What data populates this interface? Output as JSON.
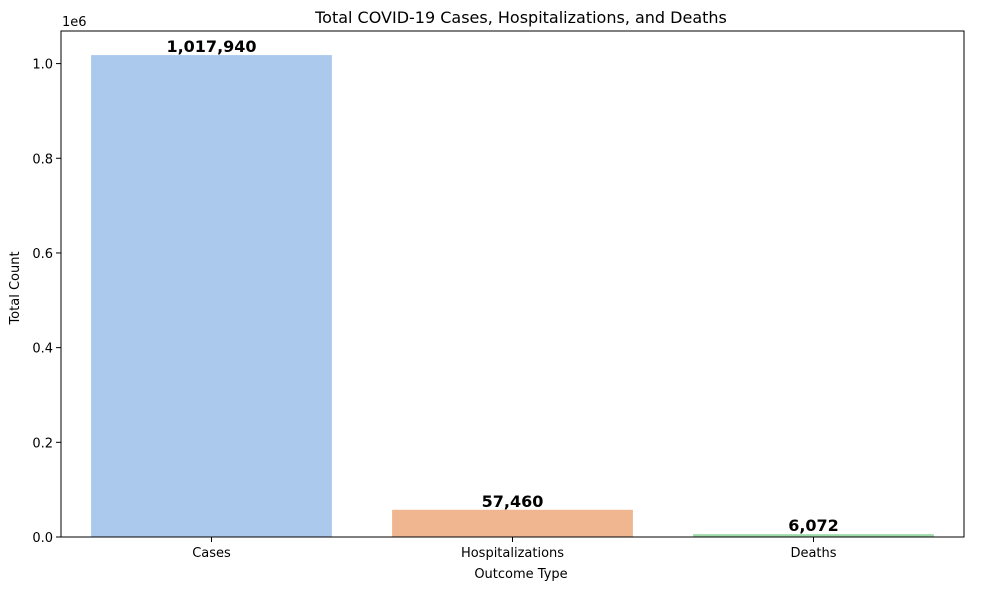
{
  "chart_data": {
    "type": "bar",
    "title": "Total COVID-19 Cases, Hospitalizations, and Deaths",
    "xlabel": "Outcome Type",
    "ylabel": "Total Count",
    "categories": [
      "Cases",
      "Hospitalizations",
      "Deaths"
    ],
    "values": [
      1017940,
      57460,
      6072
    ],
    "data_labels": [
      "1,017,940",
      "57,460",
      "6,072"
    ],
    "colors": [
      "#abc9ed",
      "#f0b690",
      "#9fdbab"
    ],
    "ylim": [
      0,
      1068837
    ],
    "y_ticks": [
      0,
      200000,
      400000,
      600000,
      800000,
      1000000
    ],
    "y_tick_labels": [
      "0.0",
      "0.2",
      "0.4",
      "0.6",
      "0.8",
      "1.0"
    ],
    "y_offset_text": "1e6",
    "grid": false,
    "legend": "none"
  }
}
